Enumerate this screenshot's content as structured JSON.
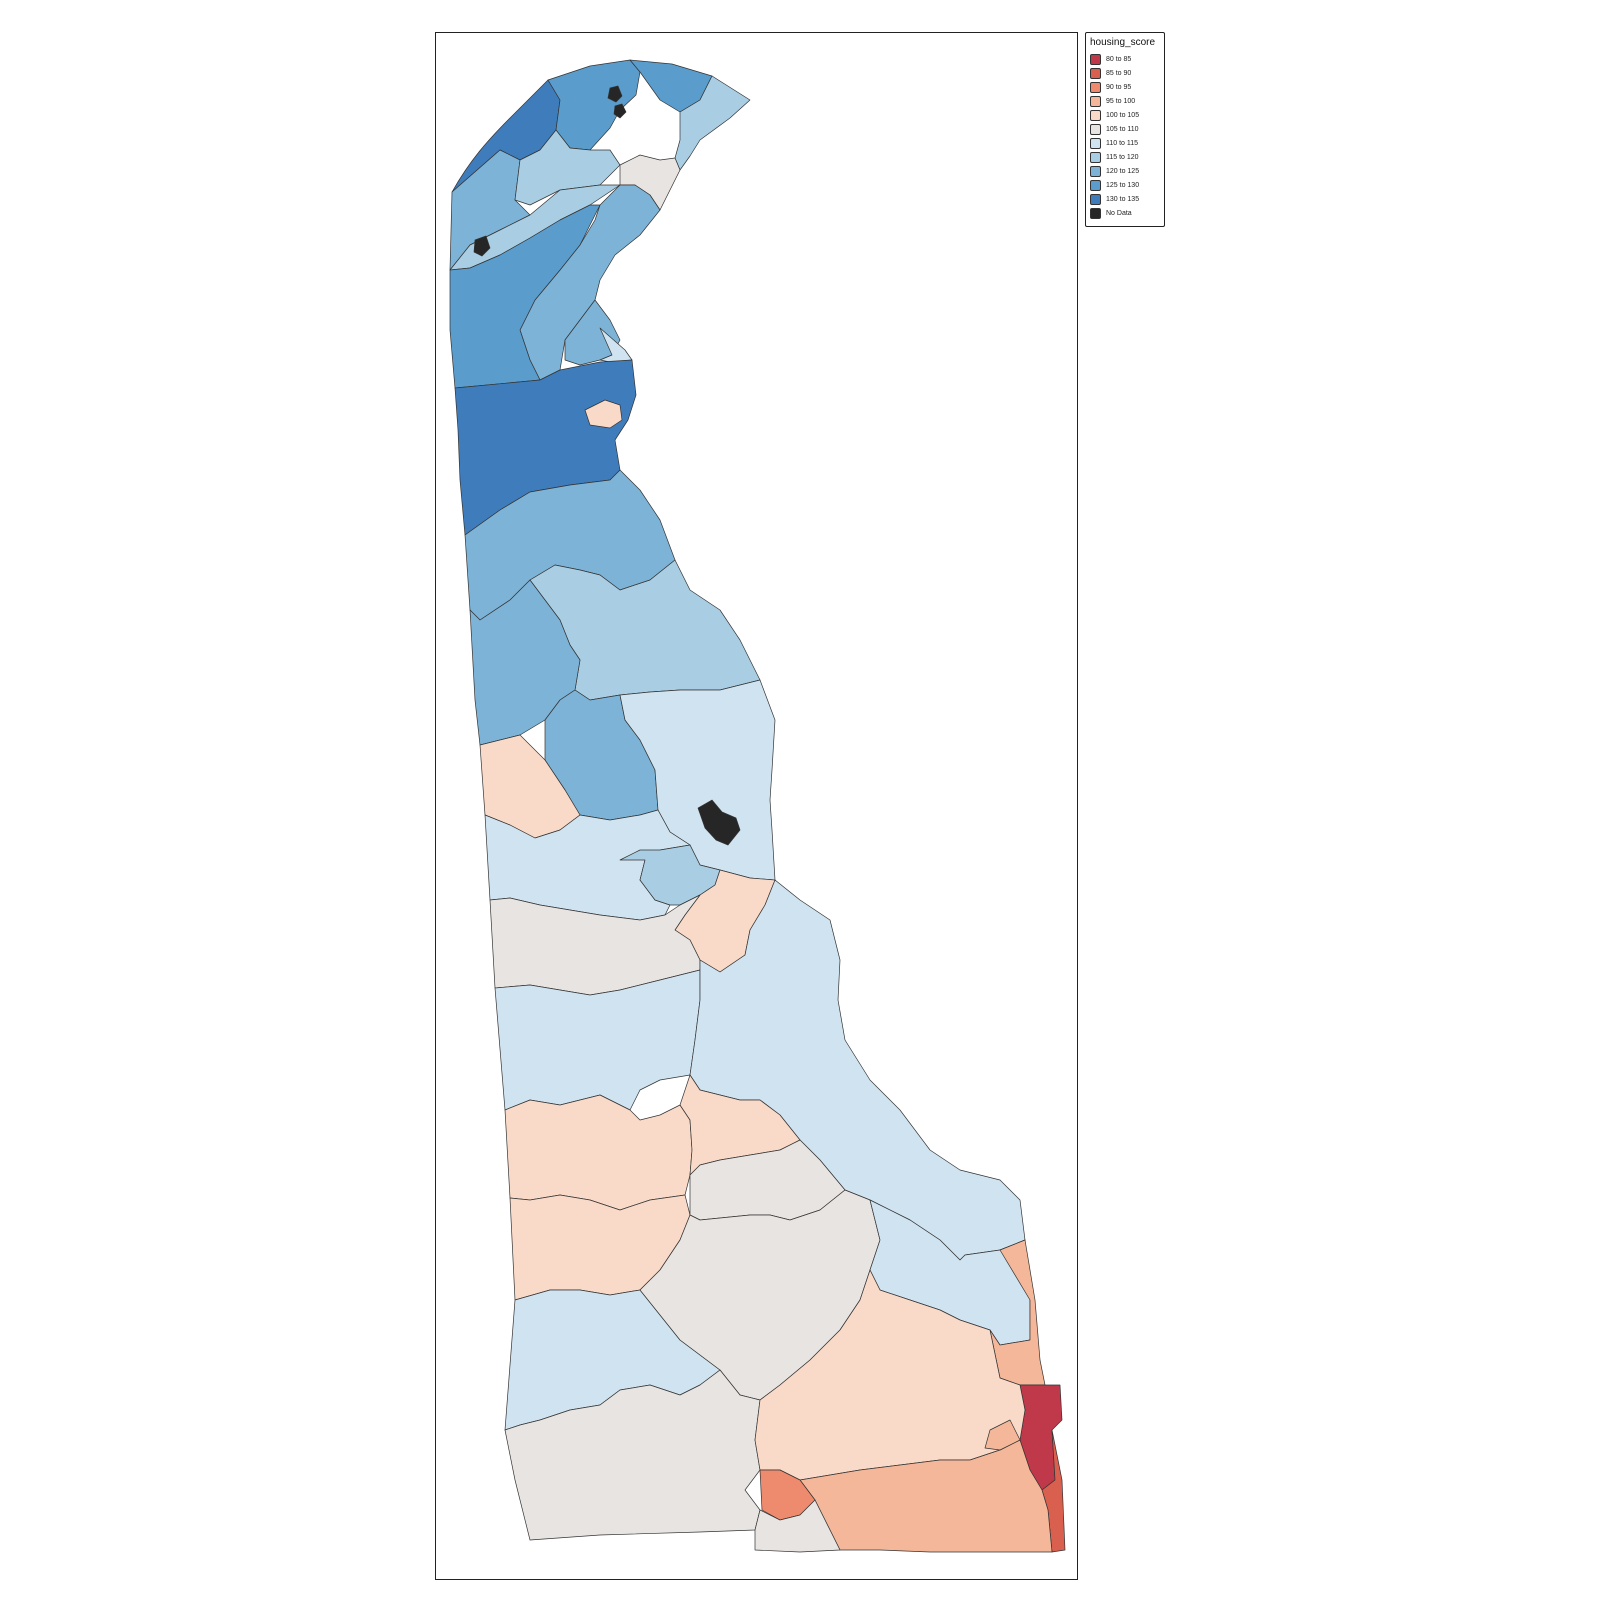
{
  "legend": {
    "title": "housing_score",
    "items": [
      {
        "label": "80 to 85",
        "color": "#c0394a"
      },
      {
        "label": "85 to 90",
        "color": "#d9604e"
      },
      {
        "label": "90 to 95",
        "color": "#ee8b6f"
      },
      {
        "label": "95 to 100",
        "color": "#f5b799"
      },
      {
        "label": "100 to 105",
        "color": "#f9d9c7"
      },
      {
        "label": "105 to 110",
        "color": "#e8e4e1"
      },
      {
        "label": "110 to 115",
        "color": "#d0e3f0"
      },
      {
        "label": "115 to 120",
        "color": "#a9cee4"
      },
      {
        "label": "120 to 125",
        "color": "#7db3d6"
      },
      {
        "label": "125 to 130",
        "color": "#5a9ccb"
      },
      {
        "label": "130 to 135",
        "color": "#3f7cbc"
      },
      {
        "label": "No Data",
        "color": "#262626"
      }
    ]
  },
  "map": {
    "regions": [
      {
        "name": "region-north-tip-left",
        "class": "130 to 135"
      },
      {
        "name": "region-north-tip-center",
        "class": "125 to 130"
      },
      {
        "name": "region-north-tip-right",
        "class": "125 to 130"
      },
      {
        "name": "region-north-east-edge",
        "class": "115 to 120"
      },
      {
        "name": "region-north-west-lobe",
        "class": "120 to 125"
      },
      {
        "name": "region-north-center-light",
        "class": "115 to 120"
      },
      {
        "name": "region-north-east-pale",
        "class": "105 to 110"
      },
      {
        "name": "region-diagonal-strip",
        "class": "115 to 120"
      },
      {
        "name": "region-north-river-band",
        "class": "120 to 125"
      },
      {
        "name": "region-north-mid-block",
        "class": "125 to 130"
      },
      {
        "name": "region-north-mid-east",
        "class": "120 to 125"
      },
      {
        "name": "region-north-mid-pale",
        "class": "110 to 115"
      },
      {
        "name": "region-mid-dark-band",
        "class": "130 to 135"
      },
      {
        "name": "region-mid-pink-island",
        "class": "100 to 105"
      },
      {
        "name": "region-mid-band-1",
        "class": "120 to 125"
      },
      {
        "name": "region-mid-band-2",
        "class": "115 to 120"
      },
      {
        "name": "region-mid-west",
        "class": "120 to 125"
      },
      {
        "name": "region-mid-center",
        "class": "120 to 125"
      },
      {
        "name": "region-mid-east-pale",
        "class": "110 to 115"
      },
      {
        "name": "region-mid-west-pink",
        "class": "100 to 105"
      },
      {
        "name": "region-central-pale",
        "class": "110 to 115"
      },
      {
        "name": "region-dover-light",
        "class": "115 to 120"
      },
      {
        "name": "region-dover-pink",
        "class": "100 to 105"
      },
      {
        "name": "region-central-grey",
        "class": "105 to 110"
      },
      {
        "name": "region-central-pale-2",
        "class": "110 to 115"
      },
      {
        "name": "region-east-pale",
        "class": "110 to 115"
      },
      {
        "name": "region-south-pink-1",
        "class": "100 to 105"
      },
      {
        "name": "region-south-pink-2",
        "class": "100 to 105"
      },
      {
        "name": "region-south-pink-3",
        "class": "100 to 105"
      },
      {
        "name": "region-south-grey-1",
        "class": "105 to 110"
      },
      {
        "name": "region-south-pale-1",
        "class": "110 to 115"
      },
      {
        "name": "region-south-grey-2",
        "class": "105 to 110"
      },
      {
        "name": "region-south-grey-3",
        "class": "105 to 110"
      },
      {
        "name": "region-coast-pale",
        "class": "110 to 115"
      },
      {
        "name": "region-coast-salmon",
        "class": "95 to 100"
      },
      {
        "name": "region-coast-red",
        "class": "80 to 85"
      },
      {
        "name": "region-coast-red-2",
        "class": "85 to 90"
      },
      {
        "name": "region-south-east-pink",
        "class": "100 to 105"
      },
      {
        "name": "region-south-salmon",
        "class": "95 to 100"
      },
      {
        "name": "region-south-salmon-2",
        "class": "95 to 100"
      },
      {
        "name": "region-south-salmon-3",
        "class": "90 to 95"
      },
      {
        "name": "region-south-grey-bottom",
        "class": "105 to 110"
      },
      {
        "name": "region-no-data-north-1",
        "class": "No Data"
      },
      {
        "name": "region-no-data-north-2",
        "class": "No Data"
      },
      {
        "name": "region-no-data-north-3",
        "class": "No Data"
      },
      {
        "name": "region-no-data-dover",
        "class": "No Data"
      }
    ]
  }
}
